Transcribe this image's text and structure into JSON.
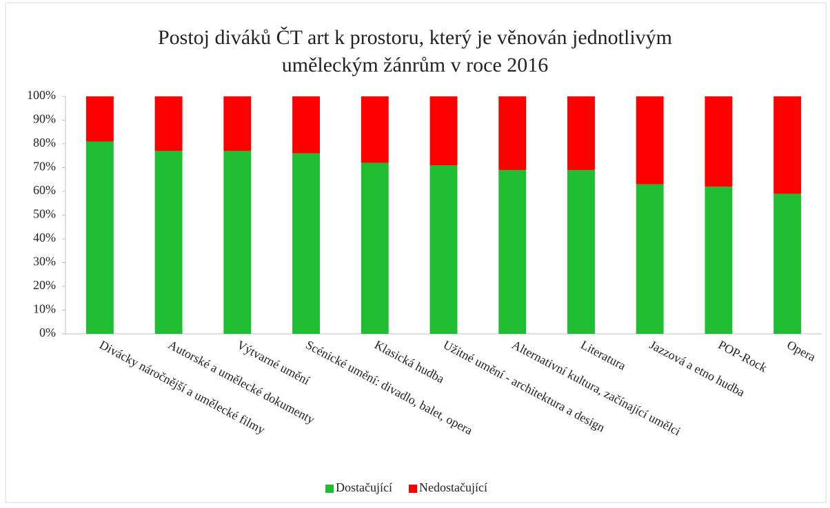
{
  "chart_data": {
    "type": "stacked_bar",
    "title": [
      "Postoj diváků ČT art k prostoru, který je věnován jednotlivým",
      "uměleckým žánrům v roce 2016"
    ],
    "categories": [
      "Divácky náročnější a umělecké filmy",
      "Autorské a umělecké dokumenty",
      "Výtvarné umění",
      "Scénické umění: divadlo, balet, opera",
      "Klasická hudba",
      "Užitné umění - architektura a design",
      "Alternativní kultura, začínající umělci",
      "Literatura",
      "Jazzová a etno hudba",
      "POP-Rock",
      "Opera"
    ],
    "series": [
      {
        "name": "Dostačující",
        "color": "#1ebd32",
        "values": [
          81,
          77,
          77,
          76,
          72,
          71,
          69,
          69,
          63,
          62,
          59
        ]
      },
      {
        "name": "Nedostačující",
        "color": "#ff0000",
        "values": [
          19,
          23,
          23,
          24,
          28,
          29,
          31,
          31,
          37,
          38,
          41
        ]
      }
    ],
    "ylim": [
      0,
      100
    ],
    "yticks": [
      {
        "value": 0,
        "label": "0%"
      },
      {
        "value": 10,
        "label": "10%"
      },
      {
        "value": 20,
        "label": "20%"
      },
      {
        "value": 30,
        "label": "30%"
      },
      {
        "value": 40,
        "label": "40%"
      },
      {
        "value": 50,
        "label": "50%"
      },
      {
        "value": 60,
        "label": "60%"
      },
      {
        "value": 70,
        "label": "70%"
      },
      {
        "value": 80,
        "label": "80%"
      },
      {
        "value": 90,
        "label": "90%"
      },
      {
        "value": 100,
        "label": "100%"
      }
    ],
    "grid": false,
    "legend": "bottom"
  }
}
